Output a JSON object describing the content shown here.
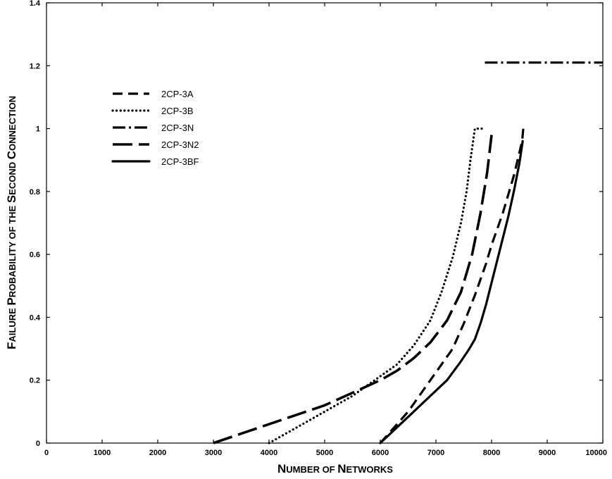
{
  "chart_data": {
    "type": "line",
    "xlabel": "Number of Networks",
    "ylabel": "Failure Probability of the Second Connection",
    "xlim": [
      0,
      10000
    ],
    "ylim": [
      0,
      1.4
    ],
    "xticks": [
      "0",
      "1000",
      "2000",
      "3000",
      "4000",
      "5000",
      "6000",
      "7000",
      "8000",
      "9000",
      "10000"
    ],
    "yticks": [
      "0",
      "0.2",
      "0.4",
      "0.6",
      "0.8",
      "1",
      "1.2",
      "1.4"
    ],
    "grid": false,
    "legend_position": "top-left",
    "series": [
      {
        "name": "2CP-3A",
        "style": "dash",
        "x": [
          6000,
          6250,
          6500,
          6700,
          6900,
          7100,
          7300,
          7500,
          7700,
          7900,
          8000,
          8200,
          8400,
          8550,
          8570
        ],
        "y": [
          0.0,
          0.05,
          0.1,
          0.15,
          0.2,
          0.25,
          0.3,
          0.38,
          0.47,
          0.57,
          0.63,
          0.73,
          0.85,
          0.96,
          1.0
        ]
      },
      {
        "name": "2CP-3B",
        "style": "dot",
        "x": [
          4000,
          4300,
          4700,
          5100,
          5500,
          5900,
          6300,
          6600,
          6900,
          7100,
          7300,
          7450,
          7550,
          7620,
          7700,
          7880
        ],
        "y": [
          0.0,
          0.03,
          0.07,
          0.11,
          0.15,
          0.2,
          0.25,
          0.31,
          0.39,
          0.48,
          0.59,
          0.7,
          0.8,
          0.9,
          1.0,
          1.0
        ]
      },
      {
        "name": "2CP-3N",
        "style": "dashdot",
        "x": [
          7880,
          7950,
          8200,
          8600,
          9000,
          9500,
          10000
        ],
        "y": [
          1.21,
          1.21,
          1.21,
          1.21,
          1.21,
          1.21,
          1.21
        ]
      },
      {
        "name": "2CP-3N2",
        "style": "longdash",
        "x": [
          3000,
          3500,
          4000,
          4500,
          5000,
          5500,
          6000,
          6300,
          6600,
          6900,
          7200,
          7450,
          7650,
          7800,
          7920,
          8000
        ],
        "y": [
          0.0,
          0.03,
          0.06,
          0.09,
          0.12,
          0.16,
          0.2,
          0.23,
          0.27,
          0.32,
          0.39,
          0.48,
          0.6,
          0.73,
          0.86,
          0.98
        ]
      },
      {
        "name": "2CP-3BF",
        "style": "solid",
        "x": [
          6000,
          6300,
          6600,
          6900,
          7200,
          7450,
          7600,
          7700,
          7800,
          7900,
          8000,
          8100,
          8200,
          8300,
          8400,
          8500,
          8560
        ],
        "y": [
          0.0,
          0.05,
          0.1,
          0.15,
          0.2,
          0.26,
          0.3,
          0.33,
          0.38,
          0.44,
          0.51,
          0.58,
          0.65,
          0.72,
          0.8,
          0.89,
          0.96
        ]
      }
    ]
  }
}
